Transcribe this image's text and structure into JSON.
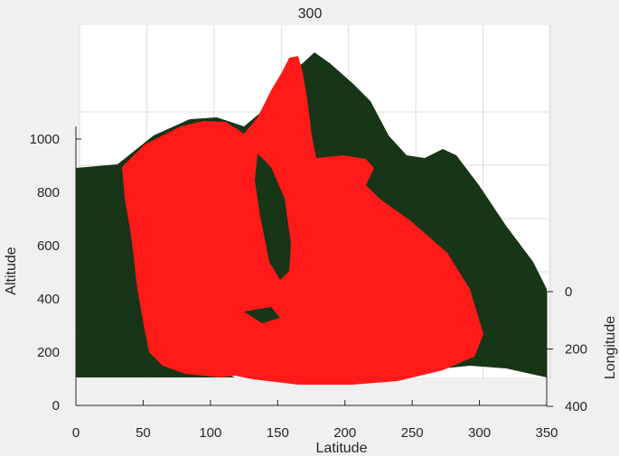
{
  "chart_data": {
    "type": "surface-3d",
    "title": "300",
    "xlabel": "Latitude",
    "ylabel": "Longitude",
    "zlabel": "Altitude",
    "xlim": [
      0,
      350
    ],
    "ylim": [
      0,
      400
    ],
    "zlim": [
      0,
      1300
    ],
    "x_ticks": [
      "0",
      "50",
      "100",
      "150",
      "200",
      "250",
      "300",
      "350"
    ],
    "y_ticks": [
      "0",
      "200",
      "400"
    ],
    "z_ticks": [
      "0",
      "200",
      "400",
      "600",
      "800",
      "1000"
    ],
    "x_tick_values": [
      0,
      50,
      100,
      150,
      200,
      250,
      300,
      350
    ],
    "y_tick_values": [
      0,
      200,
      400
    ],
    "z_tick_values": [
      0,
      200,
      400,
      600,
      800,
      1000
    ],
    "grid": true,
    "series": [
      {
        "role": "terrain-surface",
        "color": "#0f140f",
        "mesh_color": "#1e5a1e"
      },
      {
        "role": "highlighted-region",
        "color": "#ff1a1a"
      }
    ],
    "peaks": [
      {
        "series": "terrain-surface",
        "latitude": 180,
        "altitude": 1300
      },
      {
        "series": "highlighted-region",
        "latitude": 163,
        "altitude": 1290
      },
      {
        "series": "terrain-surface",
        "latitude": 278,
        "altitude": 950
      }
    ]
  }
}
